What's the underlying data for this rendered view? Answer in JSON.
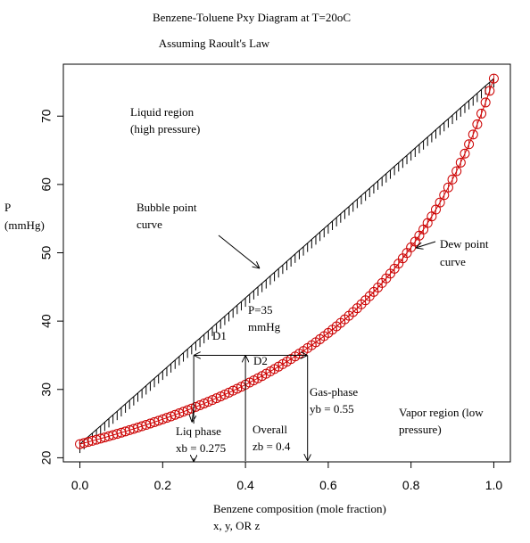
{
  "chart_data": {
    "type": "line",
    "title": "Benzene-Toluene Pxy Diagram at T=20oC",
    "subtitle": "Assuming Raoult's Law",
    "xlabel_line1": "Benzene composition (mole fraction)",
    "xlabel_line2": "x, y, OR z",
    "ylabel_line1": "P",
    "ylabel_line2": "(mmHg)",
    "xlim": [
      -0.04,
      1.04
    ],
    "ylim": [
      19.4,
      77.6
    ],
    "xticks": [
      0.0,
      0.2,
      0.4,
      0.6,
      0.8,
      1.0
    ],
    "xtick_labels": [
      "0.0",
      "0.2",
      "0.4",
      "0.6",
      "0.8",
      "1.0"
    ],
    "yticks": [
      20,
      30,
      40,
      50,
      60,
      70
    ],
    "ytick_labels": [
      "20",
      "30",
      "40",
      "50",
      "60",
      "70"
    ],
    "P_toluene": 22,
    "P_benzene": 75.5,
    "pressure_line": 35,
    "compositions": {
      "xb": 0.275,
      "zb": 0.4,
      "yb": 0.55
    },
    "series": [
      {
        "name": "Bubble point curve",
        "color": "#000000",
        "marker": "tick"
      },
      {
        "name": "Dew point curve",
        "color": "#cc0000",
        "marker": "circle"
      }
    ],
    "annotations": {
      "liquid_region_1": "Liquid region",
      "liquid_region_2": "(high pressure)",
      "bubble_1": "Bubble point",
      "bubble_2": "curve",
      "dew_1": "Dew point",
      "dew_2": "curve",
      "p35_1": "P=35",
      "p35_2": "mmHg",
      "d1": "D1",
      "d2": "D2",
      "gas_1": "Gas-phase",
      "gas_2": "yb = 0.55",
      "vapor_1": "Vapor region (low",
      "vapor_2": "pressure)",
      "liq_1": "Liq phase",
      "liq_2": "xb = 0.275",
      "overall_1": "Overall",
      "overall_2": "zb = 0.4"
    }
  }
}
